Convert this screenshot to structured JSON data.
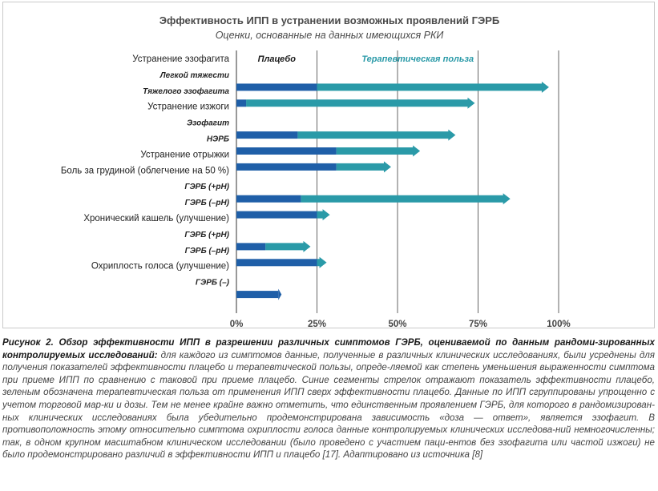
{
  "chart_data": {
    "type": "bar",
    "orientation": "horizontal",
    "stacked": true,
    "title": "Эффективность ИПП в устранении возможных проявлений ГЭРБ",
    "subtitle": "Оценки, основанные на данных имеющихся РКИ",
    "xlim": [
      0,
      100
    ],
    "xticks": [
      "0%",
      "25%",
      "50%",
      "75%",
      "100%"
    ],
    "grid": true,
    "region_labels": {
      "placebo": "Плацебо",
      "benefit": "Терапевтическая польза"
    },
    "rows": [
      {
        "label": "Устранение эзофагита",
        "kind": "group"
      },
      {
        "label": "Легкой тяжести",
        "kind": "sub",
        "placebo": 25,
        "total": 97
      },
      {
        "label": "Тяжелого эзофагита",
        "kind": "sub",
        "placebo": 3,
        "total": 74
      },
      {
        "label": "Устранение изжоги",
        "kind": "group"
      },
      {
        "label": "Эзофагит",
        "kind": "sub",
        "placebo": 19,
        "total": 68
      },
      {
        "label": "НЭРБ",
        "kind": "sub",
        "placebo": 31,
        "total": 57
      },
      {
        "label": "Устранение отрыжки",
        "kind": "group",
        "placebo": 31,
        "total": 48
      },
      {
        "label": "Боль за грудиной (облегчение на 50 %)",
        "kind": "group"
      },
      {
        "label": "ГЭРБ (+pH)",
        "kind": "sub",
        "placebo": 20,
        "total": 85
      },
      {
        "label": "ГЭРБ (–pH)",
        "kind": "sub",
        "placebo": 25,
        "total": 29
      },
      {
        "label": "Хронический кашель (улучшение)",
        "kind": "group"
      },
      {
        "label": "ГЭРБ (+pH)",
        "kind": "sub",
        "placebo": 9,
        "total": 23
      },
      {
        "label": "ГЭРБ (–pH)",
        "kind": "sub",
        "placebo": 25,
        "total": 28
      },
      {
        "label": "Охриплость голоса (улучшение)",
        "kind": "group"
      },
      {
        "label": "ГЭРБ (–)",
        "kind": "sub",
        "placebo": 13,
        "total": 14
      }
    ],
    "colors": {
      "placebo": "#1f5fa8",
      "benefit": "#2a9aa8",
      "grid": "#555555",
      "title": "#4a4a4a",
      "label": "#222222"
    }
  },
  "caption": {
    "lead": "Рисунок 2. Обзор эффективности ИПП в разрешении различных симптомов ГЭРБ, оцениваемой по данным рандоми-зированных контролируемых исследований:",
    "body": " для каждого из симптомов данные, полученные в различных клинических исследованиях, были усреднены для получения показателей эффективности плацебо и терапевтической пользы, опреде-ляемой как степень уменьшения выраженности симптома при приеме ИПП по сравнению с таковой при приеме плацебо. Синие сегменты стрелок отражают показатель эффективности плацебо, зеленым обозначена терапевтическая польза от применения ИПП сверх эффективности плацебо. Данные по ИПП сгруппированы упрощенно с учетом торговой мар-ки и дозы. Тем не менее крайне важно отметить, что единственным проявлением ГЭРБ, для которого в рандомизирован-ных клинических исследованиях была убедительно продемонстрирована зависимость «доза — ответ», является эзофагит. В противоположность этому относительно симптома охриплости голоса данные контролируемых клинических исследова-ний немногочисленны; так, в одном крупном масштабном клиническом исследовании (было проведено с участием паци-ентов без эзофагита или частой изжоги) не было продемонстрировано различий в эффективности ИПП и плацебо [17]. Адаптировано из источника [8]"
  }
}
